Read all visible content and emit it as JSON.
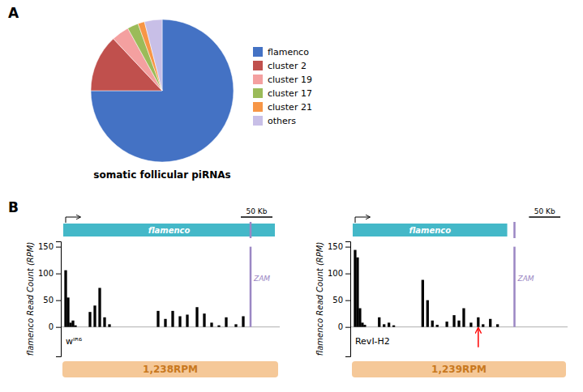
{
  "chart_data": [
    {
      "type": "pie",
      "title": "somatic follicular piRNAs",
      "categories": [
        "flamenco",
        "cluster 2",
        "cluster 19",
        "cluster 17",
        "cluster 21",
        "others"
      ],
      "values": [
        75,
        13,
        4,
        2.5,
        1.5,
        4
      ],
      "colors": [
        "#4472C4",
        "#C0504D",
        "#F4A0A0",
        "#9BBB59",
        "#F79646",
        "#C8BFE7"
      ],
      "legend": "right",
      "annotations": [
        {
          "text": "A"
        }
      ]
    },
    {
      "type": "bar",
      "x": [
        2,
        3,
        4,
        5,
        6,
        12,
        14,
        16,
        18,
        20,
        40,
        43,
        46,
        49,
        52,
        56,
        59,
        62,
        65,
        68,
        72,
        75
      ],
      "values": [
        106,
        55,
        8,
        12,
        3,
        28,
        40,
        73,
        18,
        5,
        30,
        15,
        30,
        20,
        23,
        37,
        25,
        8,
        3,
        18,
        5,
        20
      ],
      "color": "#000000",
      "xlim": [
        0,
        90
      ],
      "ylim": [
        -55,
        160
      ],
      "yticks": [
        0,
        50,
        100,
        150
      ],
      "ylabel": "flamenco Read Count (RPM)",
      "tick_labels": "y",
      "annotations": [
        {
          "text": "B"
        },
        {
          "text": "50 Kb",
          "x": [
            74,
            87
          ]
        },
        {
          "text": "flamenco",
          "x": [
            1,
            88
          ],
          "color": "#44B8C8"
        },
        {
          "text": "ZAM",
          "x": 78,
          "y": [
            0,
            150
          ],
          "color": "#9B87C4"
        },
        {
          "text": "wᴵᴿ⁶",
          "x": 2,
          "y": -27
        },
        {
          "text": "1,238RPM",
          "color": "#C87820",
          "background": "#F5C898"
        }
      ]
    },
    {
      "type": "bar",
      "x": [
        2,
        3,
        4,
        5,
        6,
        12,
        14,
        16,
        18,
        30,
        32,
        34,
        36,
        40,
        43,
        45,
        47,
        50,
        53,
        55,
        58,
        61
      ],
      "values": [
        144,
        130,
        35,
        8,
        4,
        18,
        5,
        8,
        3,
        88,
        50,
        12,
        4,
        10,
        22,
        12,
        35,
        8,
        18,
        5,
        15,
        5
      ],
      "color": "#000000",
      "xlim": [
        0,
        90
      ],
      "ylim": [
        -55,
        160
      ],
      "yticks": [
        0,
        50,
        100,
        150
      ],
      "ylabel": "flamenco Read Count (RPM)",
      "tick_labels": "y",
      "annotations": [
        {
          "text": "50 Kb",
          "x": [
            74,
            87
          ]
        },
        {
          "text": "flamenco",
          "x": [
            1,
            65
          ],
          "color": "#44B8C8"
        },
        {
          "text": "ZAM",
          "x": 68,
          "y": [
            0,
            150
          ],
          "color": "#9B87C4"
        },
        {
          "text": "RevI-H2",
          "x": 2,
          "y": -27
        },
        {
          "x": 53,
          "y": [
            -38,
            -2
          ],
          "color": "#FF0000"
        },
        {
          "text": "1,239RPM",
          "color": "#C87820",
          "background": "#F5C898"
        }
      ]
    }
  ]
}
